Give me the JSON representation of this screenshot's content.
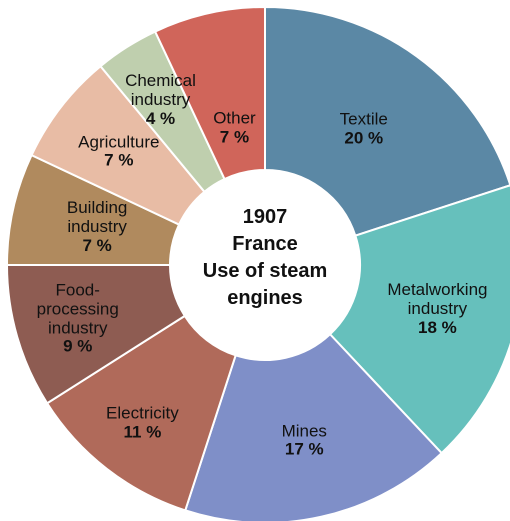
{
  "chart_data": {
    "type": "donut",
    "year": "1907",
    "subtitle": "France",
    "title": "Use of steam engines",
    "categories": [
      "Textile",
      "Metalworking industry",
      "Mines",
      "Electricity",
      "Food-processing industry",
      "Building industry",
      "Agriculture",
      "Chemical industry",
      "Other"
    ],
    "values": [
      20,
      18,
      17,
      11,
      9,
      7,
      7,
      4,
      7
    ],
    "value_labels": [
      "20 %",
      "18 %",
      "17 %",
      "11 %",
      "9 %",
      "7 %",
      "7 %",
      "4 %",
      "7 %"
    ],
    "colors": [
      "#5b88a5",
      "#66c0bc",
      "#7f8fc8",
      "#b06a5a",
      "#8e5c52",
      "#b08a5e",
      "#e8bca5",
      "#bfcfae",
      "#d0655a"
    ]
  }
}
